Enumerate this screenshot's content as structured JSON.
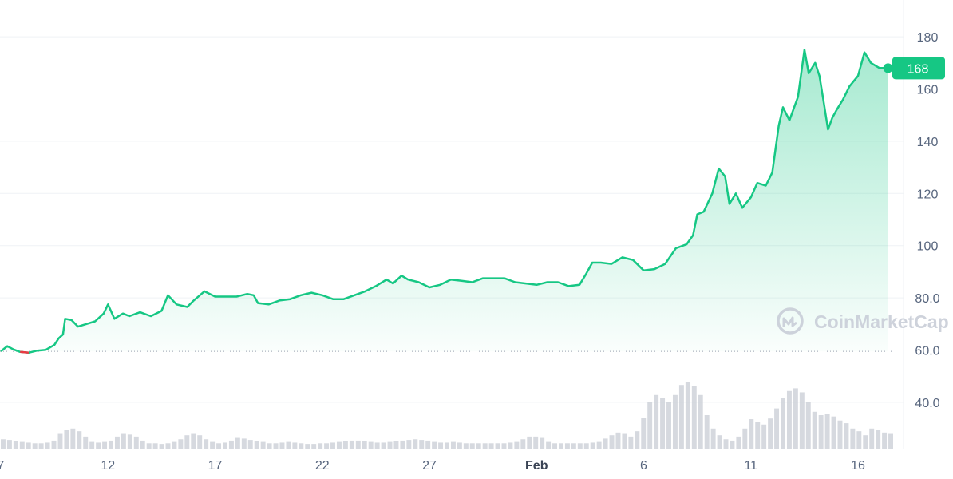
{
  "chart_data": {
    "type": "area",
    "currency_unit": "",
    "colors": {
      "line": "#16c784",
      "negative": "#ea3943",
      "grid": "#eff2f5",
      "axis_text": "#58667e",
      "volume": "#c4c9d2"
    },
    "y_range": [
      20,
      190
    ],
    "y_ticks": [
      "180",
      "160",
      "140",
      "120",
      "100",
      "80.0",
      "60.0",
      "40.0"
    ],
    "y_tick_values": [
      180,
      160,
      140,
      120,
      100,
      80,
      60,
      40
    ],
    "x_ticks": [
      "7",
      "12",
      "17",
      "22",
      "27",
      "Feb",
      "6",
      "11",
      "16"
    ],
    "x_tick_dates": [
      "Jan 7",
      "Jan 12",
      "Jan 17",
      "Jan 22",
      "Jan 27",
      "Feb 1",
      "Feb 6",
      "Feb 11",
      "Feb 16"
    ],
    "x_range_dates": [
      "Jan 7",
      "Feb 17"
    ],
    "opening_price": 59.5,
    "last_price_label": "168",
    "last_price": 168,
    "watermark": "CoinMarketCap",
    "price_series": {
      "name": "",
      "points": [
        [
          "Jan 7",
          59.5
        ],
        [
          "Jan 7.3",
          61.5
        ],
        [
          "Jan 7.6",
          60.2
        ],
        [
          "Jan 7.9",
          59.3
        ],
        [
          "Jan 8.3",
          59.0
        ],
        [
          "Jan 8.7",
          59.8
        ],
        [
          "Jan 9.1",
          60.1
        ],
        [
          "Jan 9.5",
          62.0
        ],
        [
          "Jan 9.7",
          64.5
        ],
        [
          "Jan 9.9",
          66.0
        ],
        [
          "Jan 10",
          72.0
        ],
        [
          "Jan 10.3",
          71.5
        ],
        [
          "Jan 10.6",
          69.0
        ],
        [
          "Jan 11",
          70.0
        ],
        [
          "Jan 11.4",
          71.0
        ],
        [
          "Jan 11.8",
          74.0
        ],
        [
          "Jan 12",
          77.5
        ],
        [
          "Jan 12.3",
          72.0
        ],
        [
          "Jan 12.7",
          74.0
        ],
        [
          "Jan 13",
          73.0
        ],
        [
          "Jan 13.5",
          74.5
        ],
        [
          "Jan 14",
          73.0
        ],
        [
          "Jan 14.5",
          75.0
        ],
        [
          "Jan 14.8",
          81.0
        ],
        [
          "Jan 15.2",
          77.5
        ],
        [
          "Jan 15.7",
          76.5
        ],
        [
          "Jan 16",
          79.0
        ],
        [
          "Jan 16.5",
          82.5
        ],
        [
          "Jan 17",
          80.5
        ],
        [
          "Jan 17.5",
          80.5
        ],
        [
          "Jan 18",
          80.5
        ],
        [
          "Jan 18.5",
          81.5
        ],
        [
          "Jan 18.8",
          81.0
        ],
        [
          "Jan 19",
          78.0
        ],
        [
          "Jan 19.5",
          77.5
        ],
        [
          "Jan 20",
          79.0
        ],
        [
          "Jan 20.5",
          79.5
        ],
        [
          "Jan 21",
          81.0
        ],
        [
          "Jan 21.5",
          82.0
        ],
        [
          "Jan 22",
          81.0
        ],
        [
          "Jan 22.5",
          79.5
        ],
        [
          "Jan 23",
          79.5
        ],
        [
          "Jan 23.5",
          81.0
        ],
        [
          "Jan 24",
          82.5
        ],
        [
          "Jan 24.5",
          84.5
        ],
        [
          "Jan 25",
          87.0
        ],
        [
          "Jan 25.3",
          85.5
        ],
        [
          "Jan 25.7",
          88.5
        ],
        [
          "Jan 26",
          87.0
        ],
        [
          "Jan 26.5",
          86.0
        ],
        [
          "Jan 27",
          84.0
        ],
        [
          "Jan 27.5",
          85.0
        ],
        [
          "Jan 28",
          87.0
        ],
        [
          "Jan 28.5",
          86.5
        ],
        [
          "Jan 29",
          86.0
        ],
        [
          "Jan 29.5",
          87.5
        ],
        [
          "Jan 30",
          87.5
        ],
        [
          "Jan 30.5",
          87.5
        ],
        [
          "Jan 31",
          86.0
        ],
        [
          "Feb 1",
          85.0
        ],
        [
          "Feb 1.5",
          86.0
        ],
        [
          "Feb 2",
          86.0
        ],
        [
          "Feb 2.5",
          84.5
        ],
        [
          "Feb 3",
          85.0
        ],
        [
          "Feb 3.3",
          89.0
        ],
        [
          "Feb 3.6",
          93.5
        ],
        [
          "Feb 4",
          93.5
        ],
        [
          "Feb 4.5",
          93.0
        ],
        [
          "Feb 5",
          95.5
        ],
        [
          "Feb 5.5",
          94.5
        ],
        [
          "Feb 6",
          90.5
        ],
        [
          "Feb 6.5",
          91.0
        ],
        [
          "Feb 7",
          93.0
        ],
        [
          "Feb 7.5",
          99.0
        ],
        [
          "Feb 8",
          100.5
        ],
        [
          "Feb 8.3",
          104.0
        ],
        [
          "Feb 8.5",
          112.0
        ],
        [
          "Feb 8.8",
          113.0
        ],
        [
          "Feb 9.2",
          120.0
        ],
        [
          "Feb 9.5",
          129.5
        ],
        [
          "Feb 9.8",
          126.5
        ],
        [
          "Feb 10",
          116.0
        ],
        [
          "Feb 10.3",
          120.0
        ],
        [
          "Feb 10.6",
          114.5
        ],
        [
          "Feb 11",
          118.5
        ],
        [
          "Feb 11.3",
          124.0
        ],
        [
          "Feb 11.7",
          123.0
        ],
        [
          "Feb 12",
          128.0
        ],
        [
          "Feb 12.3",
          146.0
        ],
        [
          "Feb 12.5",
          153.0
        ],
        [
          "Feb 12.8",
          148.0
        ],
        [
          "Feb 13.2",
          157.0
        ],
        [
          "Feb 13.5",
          175.0
        ],
        [
          "Feb 13.7",
          166.0
        ],
        [
          "Feb 14",
          170.0
        ],
        [
          "Feb 14.2",
          165.0
        ],
        [
          "Feb 14.4",
          155.0
        ],
        [
          "Feb 14.6",
          144.5
        ],
        [
          "Feb 14.8",
          149.0
        ],
        [
          "Feb 15",
          152.0
        ],
        [
          "Feb 15.3",
          156.0
        ],
        [
          "Feb 15.6",
          161.0
        ],
        [
          "Feb 16",
          165.0
        ],
        [
          "Feb 16.3",
          174.0
        ],
        [
          "Feb 16.6",
          170.0
        ],
        [
          "Feb 17",
          168.0
        ],
        [
          "Feb 17.4",
          168.0
        ]
      ]
    },
    "volume_series": {
      "name": "",
      "values": [
        14,
        13,
        11,
        10,
        9,
        8,
        8,
        9,
        12,
        22,
        28,
        30,
        26,
        18,
        10,
        9,
        10,
        12,
        18,
        22,
        21,
        18,
        12,
        8,
        8,
        7,
        8,
        10,
        14,
        20,
        22,
        20,
        14,
        10,
        8,
        9,
        12,
        16,
        15,
        13,
        11,
        10,
        8,
        8,
        9,
        10,
        9,
        8,
        7,
        7,
        8,
        8,
        9,
        10,
        11,
        12,
        12,
        11,
        10,
        9,
        9,
        10,
        11,
        12,
        13,
        14,
        13,
        12,
        10,
        9,
        9,
        10,
        9,
        8,
        8,
        8,
        8,
        8,
        8,
        8,
        9,
        10,
        14,
        18,
        18,
        16,
        10,
        8,
        8,
        8,
        8,
        8,
        8,
        9,
        10,
        15,
        20,
        24,
        22,
        18,
        26,
        46,
        70,
        80,
        76,
        70,
        80,
        95,
        100,
        94,
        80,
        50,
        30,
        20,
        14,
        12,
        18,
        30,
        44,
        40,
        36,
        45,
        60,
        75,
        86,
        90,
        84,
        70,
        55,
        50,
        52,
        48,
        42,
        38,
        30,
        26,
        20,
        30,
        28,
        24,
        22
      ]
    }
  }
}
